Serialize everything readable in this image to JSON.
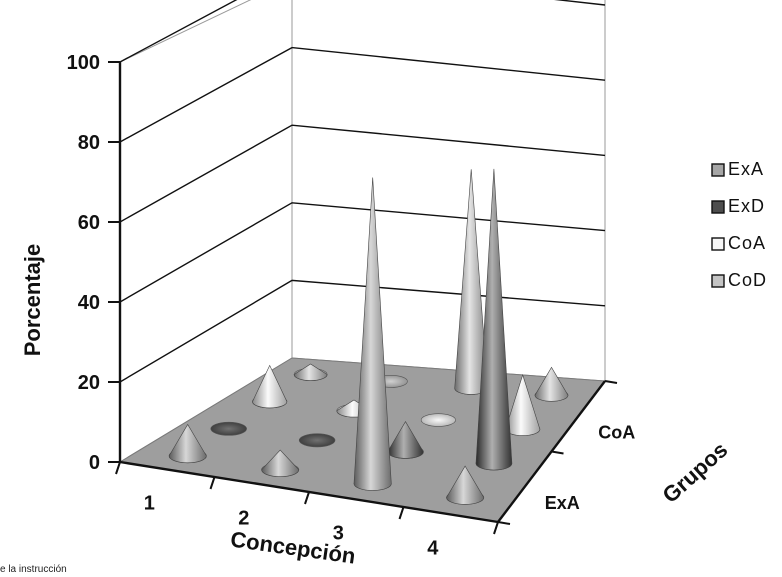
{
  "chart_data": {
    "type": "bar",
    "style": "3d-cones",
    "title": "",
    "ylabel": "Porcentaje",
    "xlabel": "Concepción",
    "zlabel": "Grupos",
    "ylim": [
      0,
      100
    ],
    "yticks": [
      "0",
      "20",
      "40",
      "60",
      "80",
      "100"
    ],
    "categories": [
      "1",
      "2",
      "3",
      "4"
    ],
    "depth_labels": [
      "ExA",
      "CoA"
    ],
    "grid": true,
    "legend": "right",
    "series": [
      {
        "name": "ExA",
        "color": "#a6a6a6",
        "values": [
          8,
          5,
          78,
          8
        ]
      },
      {
        "name": "ExD",
        "color": "#4d4d4d",
        "values": [
          0,
          0,
          8,
          78
        ]
      },
      {
        "name": "CoA",
        "color": "#f7f7f7",
        "values": [
          10,
          3,
          0,
          15
        ]
      },
      {
        "name": "CoD",
        "color": "#c4c4c4",
        "values": [
          3,
          0,
          63,
          8
        ]
      }
    ]
  },
  "caption": "e la instrucción"
}
